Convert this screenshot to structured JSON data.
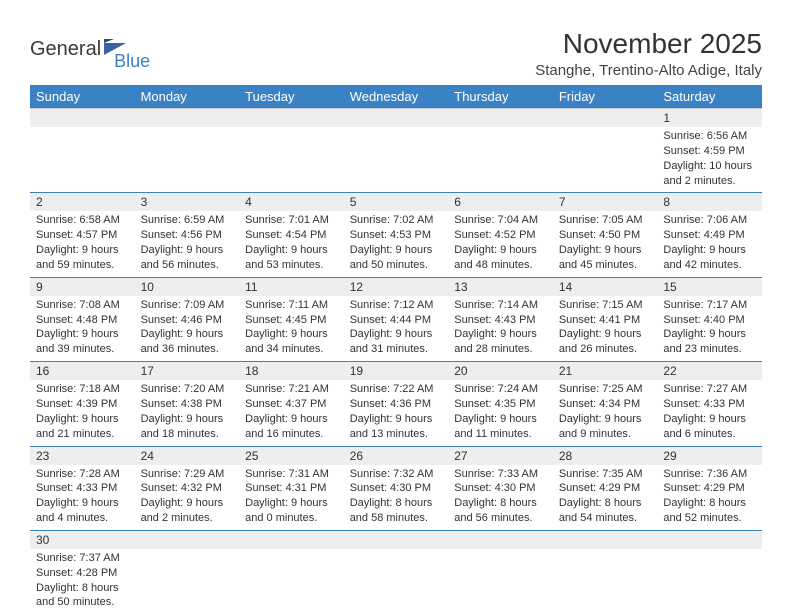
{
  "logo": {
    "general": "General",
    "blue": "Blue"
  },
  "title": "November 2025",
  "location": "Stanghe, Trentino-Alto Adige, Italy",
  "colors": {
    "header_bg": "#3b82c4",
    "header_text": "#ffffff",
    "daynum_bg": "#eceeef",
    "row_divider": "#3b82c4",
    "logo_blue": "#3b82c4",
    "flag_blue": "#3864a6"
  },
  "dayNames": [
    "Sunday",
    "Monday",
    "Tuesday",
    "Wednesday",
    "Thursday",
    "Friday",
    "Saturday"
  ],
  "weeks": [
    [
      null,
      null,
      null,
      null,
      null,
      null,
      {
        "n": "1",
        "sr": "Sunrise: 6:56 AM",
        "ss": "Sunset: 4:59 PM",
        "dl": "Daylight: 10 hours and 2 minutes."
      }
    ],
    [
      {
        "n": "2",
        "sr": "Sunrise: 6:58 AM",
        "ss": "Sunset: 4:57 PM",
        "dl": "Daylight: 9 hours and 59 minutes."
      },
      {
        "n": "3",
        "sr": "Sunrise: 6:59 AM",
        "ss": "Sunset: 4:56 PM",
        "dl": "Daylight: 9 hours and 56 minutes."
      },
      {
        "n": "4",
        "sr": "Sunrise: 7:01 AM",
        "ss": "Sunset: 4:54 PM",
        "dl": "Daylight: 9 hours and 53 minutes."
      },
      {
        "n": "5",
        "sr": "Sunrise: 7:02 AM",
        "ss": "Sunset: 4:53 PM",
        "dl": "Daylight: 9 hours and 50 minutes."
      },
      {
        "n": "6",
        "sr": "Sunrise: 7:04 AM",
        "ss": "Sunset: 4:52 PM",
        "dl": "Daylight: 9 hours and 48 minutes."
      },
      {
        "n": "7",
        "sr": "Sunrise: 7:05 AM",
        "ss": "Sunset: 4:50 PM",
        "dl": "Daylight: 9 hours and 45 minutes."
      },
      {
        "n": "8",
        "sr": "Sunrise: 7:06 AM",
        "ss": "Sunset: 4:49 PM",
        "dl": "Daylight: 9 hours and 42 minutes."
      }
    ],
    [
      {
        "n": "9",
        "sr": "Sunrise: 7:08 AM",
        "ss": "Sunset: 4:48 PM",
        "dl": "Daylight: 9 hours and 39 minutes."
      },
      {
        "n": "10",
        "sr": "Sunrise: 7:09 AM",
        "ss": "Sunset: 4:46 PM",
        "dl": "Daylight: 9 hours and 36 minutes."
      },
      {
        "n": "11",
        "sr": "Sunrise: 7:11 AM",
        "ss": "Sunset: 4:45 PM",
        "dl": "Daylight: 9 hours and 34 minutes."
      },
      {
        "n": "12",
        "sr": "Sunrise: 7:12 AM",
        "ss": "Sunset: 4:44 PM",
        "dl": "Daylight: 9 hours and 31 minutes."
      },
      {
        "n": "13",
        "sr": "Sunrise: 7:14 AM",
        "ss": "Sunset: 4:43 PM",
        "dl": "Daylight: 9 hours and 28 minutes."
      },
      {
        "n": "14",
        "sr": "Sunrise: 7:15 AM",
        "ss": "Sunset: 4:41 PM",
        "dl": "Daylight: 9 hours and 26 minutes."
      },
      {
        "n": "15",
        "sr": "Sunrise: 7:17 AM",
        "ss": "Sunset: 4:40 PM",
        "dl": "Daylight: 9 hours and 23 minutes."
      }
    ],
    [
      {
        "n": "16",
        "sr": "Sunrise: 7:18 AM",
        "ss": "Sunset: 4:39 PM",
        "dl": "Daylight: 9 hours and 21 minutes."
      },
      {
        "n": "17",
        "sr": "Sunrise: 7:20 AM",
        "ss": "Sunset: 4:38 PM",
        "dl": "Daylight: 9 hours and 18 minutes."
      },
      {
        "n": "18",
        "sr": "Sunrise: 7:21 AM",
        "ss": "Sunset: 4:37 PM",
        "dl": "Daylight: 9 hours and 16 minutes."
      },
      {
        "n": "19",
        "sr": "Sunrise: 7:22 AM",
        "ss": "Sunset: 4:36 PM",
        "dl": "Daylight: 9 hours and 13 minutes."
      },
      {
        "n": "20",
        "sr": "Sunrise: 7:24 AM",
        "ss": "Sunset: 4:35 PM",
        "dl": "Daylight: 9 hours and 11 minutes."
      },
      {
        "n": "21",
        "sr": "Sunrise: 7:25 AM",
        "ss": "Sunset: 4:34 PM",
        "dl": "Daylight: 9 hours and 9 minutes."
      },
      {
        "n": "22",
        "sr": "Sunrise: 7:27 AM",
        "ss": "Sunset: 4:33 PM",
        "dl": "Daylight: 9 hours and 6 minutes."
      }
    ],
    [
      {
        "n": "23",
        "sr": "Sunrise: 7:28 AM",
        "ss": "Sunset: 4:33 PM",
        "dl": "Daylight: 9 hours and 4 minutes."
      },
      {
        "n": "24",
        "sr": "Sunrise: 7:29 AM",
        "ss": "Sunset: 4:32 PM",
        "dl": "Daylight: 9 hours and 2 minutes."
      },
      {
        "n": "25",
        "sr": "Sunrise: 7:31 AM",
        "ss": "Sunset: 4:31 PM",
        "dl": "Daylight: 9 hours and 0 minutes."
      },
      {
        "n": "26",
        "sr": "Sunrise: 7:32 AM",
        "ss": "Sunset: 4:30 PM",
        "dl": "Daylight: 8 hours and 58 minutes."
      },
      {
        "n": "27",
        "sr": "Sunrise: 7:33 AM",
        "ss": "Sunset: 4:30 PM",
        "dl": "Daylight: 8 hours and 56 minutes."
      },
      {
        "n": "28",
        "sr": "Sunrise: 7:35 AM",
        "ss": "Sunset: 4:29 PM",
        "dl": "Daylight: 8 hours and 54 minutes."
      },
      {
        "n": "29",
        "sr": "Sunrise: 7:36 AM",
        "ss": "Sunset: 4:29 PM",
        "dl": "Daylight: 8 hours and 52 minutes."
      }
    ],
    [
      {
        "n": "30",
        "sr": "Sunrise: 7:37 AM",
        "ss": "Sunset: 4:28 PM",
        "dl": "Daylight: 8 hours and 50 minutes."
      },
      null,
      null,
      null,
      null,
      null,
      null
    ]
  ]
}
